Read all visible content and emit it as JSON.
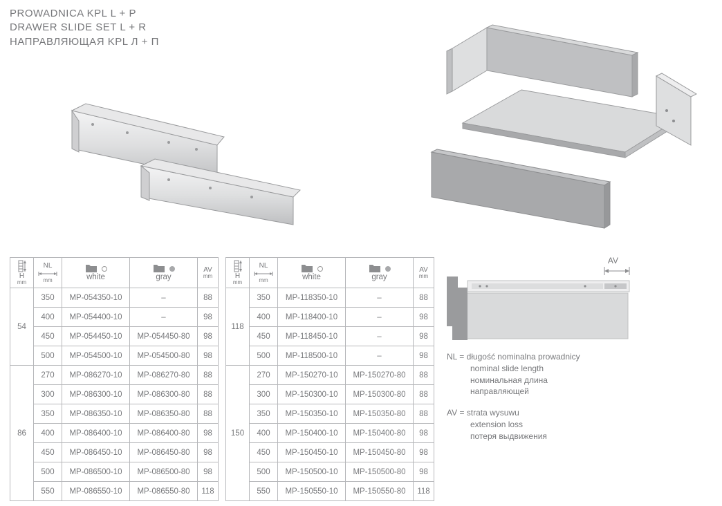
{
  "titles": {
    "pl": "PROWADNICA KPL L + P",
    "en": "DRAWER SLIDE SET L + R",
    "ru": "НАПРАВЛЯЮЩАЯ KPL Л + П"
  },
  "headers": {
    "h_top": "H",
    "h_unit": "mm",
    "nl_top": "NL",
    "nl_unit": "mm",
    "white": "white",
    "gray": "gray",
    "av_top": "AV",
    "av_unit": "mm"
  },
  "colors": {
    "text": "#77787b",
    "border": "#b6b7ba",
    "folder": "#8d8e90",
    "gray_dot": "#a8a9ab",
    "diagram_dark": "#9a9b9d",
    "diagram_light": "#d9dadb"
  },
  "table1": {
    "groups": [
      {
        "h": "54",
        "rows": [
          {
            "nl": "350",
            "white": "MP-054350-10",
            "gray": "–",
            "av": "88"
          },
          {
            "nl": "400",
            "white": "MP-054400-10",
            "gray": "–",
            "av": "98"
          },
          {
            "nl": "450",
            "white": "MP-054450-10",
            "gray": "MP-054450-80",
            "av": "98"
          },
          {
            "nl": "500",
            "white": "MP-054500-10",
            "gray": "MP-054500-80",
            "av": "98"
          }
        ]
      },
      {
        "h": "86",
        "rows": [
          {
            "nl": "270",
            "white": "MP-086270-10",
            "gray": "MP-086270-80",
            "av": "88"
          },
          {
            "nl": "300",
            "white": "MP-086300-10",
            "gray": "MP-086300-80",
            "av": "88"
          },
          {
            "nl": "350",
            "white": "MP-086350-10",
            "gray": "MP-086350-80",
            "av": "88"
          },
          {
            "nl": "400",
            "white": "MP-086400-10",
            "gray": "MP-086400-80",
            "av": "98"
          },
          {
            "nl": "450",
            "white": "MP-086450-10",
            "gray": "MP-086450-80",
            "av": "98"
          },
          {
            "nl": "500",
            "white": "MP-086500-10",
            "gray": "MP-086500-80",
            "av": "98"
          },
          {
            "nl": "550",
            "white": "MP-086550-10",
            "gray": "MP-086550-80",
            "av": "118"
          }
        ]
      }
    ]
  },
  "table2": {
    "groups": [
      {
        "h": "118",
        "rows": [
          {
            "nl": "350",
            "white": "MP-118350-10",
            "gray": "–",
            "av": "88"
          },
          {
            "nl": "400",
            "white": "MP-118400-10",
            "gray": "–",
            "av": "98"
          },
          {
            "nl": "450",
            "white": "MP-118450-10",
            "gray": "–",
            "av": "98"
          },
          {
            "nl": "500",
            "white": "MP-118500-10",
            "gray": "–",
            "av": "98"
          }
        ]
      },
      {
        "h": "150",
        "rows": [
          {
            "nl": "270",
            "white": "MP-150270-10",
            "gray": "MP-150270-80",
            "av": "88"
          },
          {
            "nl": "300",
            "white": "MP-150300-10",
            "gray": "MP-150300-80",
            "av": "88"
          },
          {
            "nl": "350",
            "white": "MP-150350-10",
            "gray": "MP-150350-80",
            "av": "88"
          },
          {
            "nl": "400",
            "white": "MP-150400-10",
            "gray": "MP-150400-80",
            "av": "98"
          },
          {
            "nl": "450",
            "white": "MP-150450-10",
            "gray": "MP-150450-80",
            "av": "98"
          },
          {
            "nl": "500",
            "white": "MP-150500-10",
            "gray": "MP-150500-80",
            "av": "98"
          },
          {
            "nl": "550",
            "white": "MP-150550-10",
            "gray": "MP-150550-80",
            "av": "118"
          }
        ]
      }
    ]
  },
  "diagram": {
    "av_label": "AV"
  },
  "legend": {
    "nl_key": "NL = ",
    "nl_pl": "długość nominalna prowadnicy",
    "nl_en": "nominal slide length",
    "nl_ru1": "номинальная длина",
    "nl_ru2": "направляющей",
    "av_key": "AV = ",
    "av_pl": "strata wysuwu",
    "av_en": "extension loss",
    "av_ru": "потеря выдвижения"
  }
}
